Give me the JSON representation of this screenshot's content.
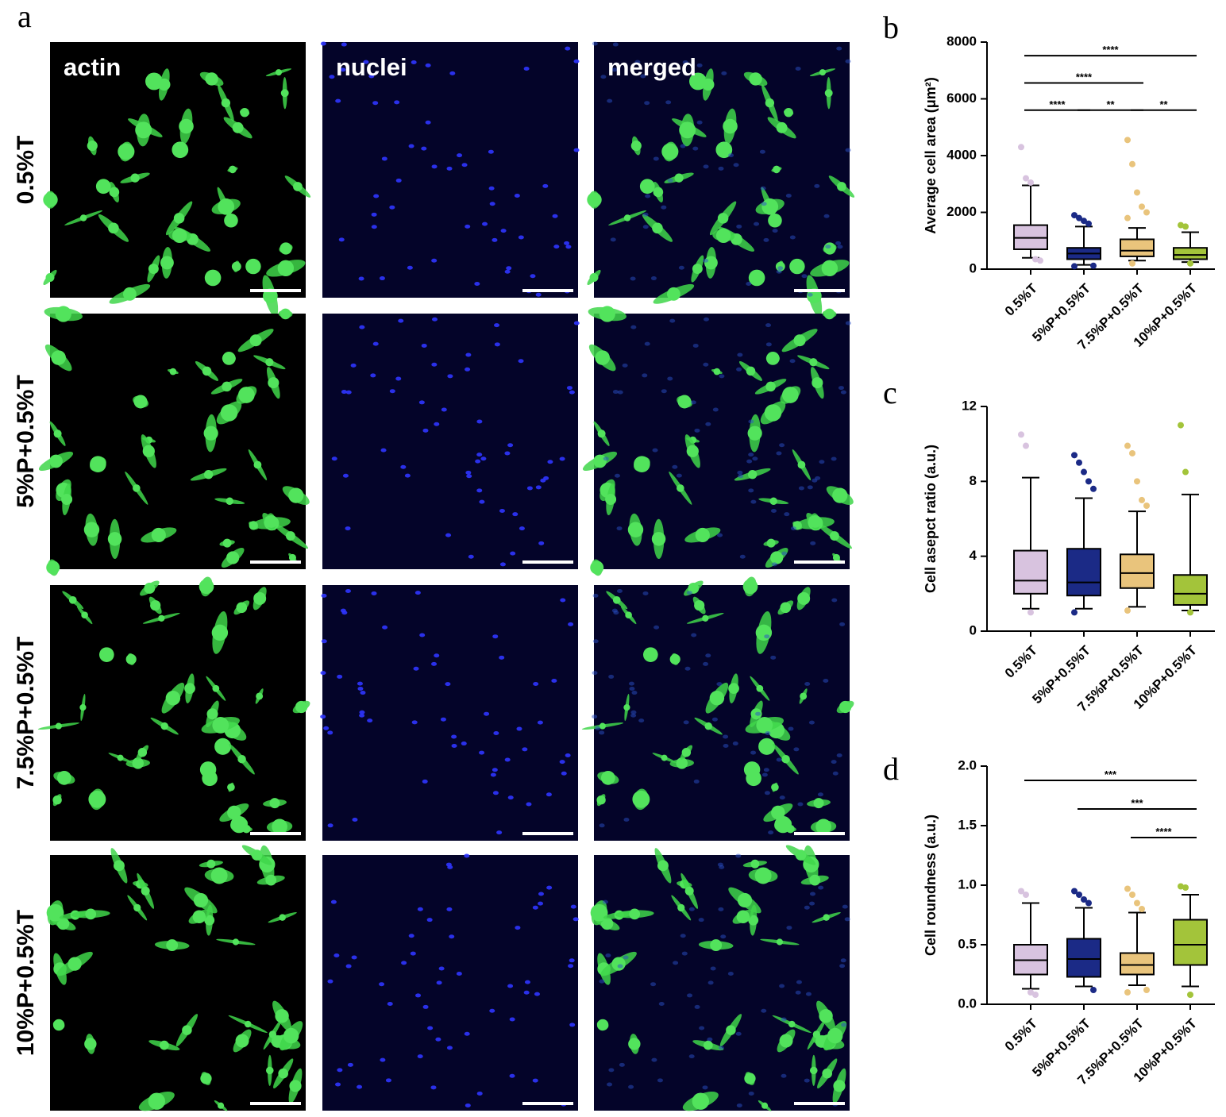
{
  "figure": {
    "panel_a": {
      "label": "a",
      "columns": [
        "actin",
        "nuclei",
        "merged"
      ],
      "rows": [
        "0.5%T",
        "5%P+0.5%T",
        "7.5%P+0.5%T",
        "10%P+0.5%T"
      ]
    }
  },
  "chart_data": [
    {
      "type": "box",
      "panel_label": "b",
      "ylabel": "Average cell area (μm²)",
      "categories": [
        "0.5%T",
        "5%P+0.5%T",
        "7.5%P+0.5%T",
        "10%P+0.5%T"
      ],
      "colors": [
        "#d8c3df",
        "#1b2a86",
        "#e9c47c",
        "#a3c43a"
      ],
      "ylim": [
        0,
        8000
      ],
      "yticks": [
        0,
        2000,
        4000,
        6000,
        8000
      ],
      "boxes": [
        {
          "whisker_low": 400,
          "q1": 700,
          "median": 1100,
          "q3": 1550,
          "whisker_high": 2950,
          "outliers": [
            4300,
            3200,
            3050,
            350,
            300
          ]
        },
        {
          "whisker_low": 150,
          "q1": 350,
          "median": 550,
          "q3": 750,
          "whisker_high": 1500,
          "outliers": [
            1900,
            1800,
            1700,
            1600,
            120,
            100
          ]
        },
        {
          "whisker_low": 300,
          "q1": 450,
          "median": 650,
          "q3": 1050,
          "whisker_high": 1450,
          "outliers": [
            4550,
            3700,
            2700,
            2200,
            2000,
            1800,
            200
          ]
        },
        {
          "whisker_low": 250,
          "q1": 350,
          "median": 500,
          "q3": 750,
          "whisker_high": 1300,
          "outliers": [
            1550,
            1500,
            200
          ]
        }
      ],
      "significance": [
        {
          "label": "****",
          "span": [
            "0.5%T",
            "10%P+0.5%T"
          ]
        },
        {
          "label": "****",
          "span": [
            "0.5%T",
            "7.5%P+0.5%T"
          ]
        },
        {
          "label": "****",
          "span": [
            "0.5%T",
            "5%P+0.5%T"
          ]
        },
        {
          "label": "**",
          "span": [
            "5%P+0.5%T",
            "7.5%P+0.5%T"
          ]
        },
        {
          "label": "**",
          "span": [
            "7.5%P+0.5%T",
            "10%P+0.5%T"
          ]
        }
      ]
    },
    {
      "type": "box",
      "panel_label": "c",
      "ylabel": "Cell asepct ratio (a.u.)",
      "categories": [
        "0.5%T",
        "5%P+0.5%T",
        "7.5%P+0.5%T",
        "10%P+0.5%T"
      ],
      "colors": [
        "#d8c3df",
        "#1b2a86",
        "#e9c47c",
        "#a3c43a"
      ],
      "ylim": [
        0,
        12
      ],
      "yticks": [
        0,
        4,
        8,
        12
      ],
      "boxes": [
        {
          "whisker_low": 1.2,
          "q1": 2.0,
          "median": 2.7,
          "q3": 4.3,
          "whisker_high": 8.2,
          "outliers": [
            10.5,
            9.9,
            1.0
          ]
        },
        {
          "whisker_low": 1.2,
          "q1": 1.9,
          "median": 2.6,
          "q3": 4.4,
          "whisker_high": 7.1,
          "outliers": [
            9.4,
            9.0,
            8.5,
            8.0,
            7.6,
            1.0
          ]
        },
        {
          "whisker_low": 1.3,
          "q1": 2.3,
          "median": 3.1,
          "q3": 4.1,
          "whisker_high": 6.4,
          "outliers": [
            9.9,
            9.5,
            8.0,
            7.0,
            6.7,
            1.1
          ]
        },
        {
          "whisker_low": 1.1,
          "q1": 1.4,
          "median": 2.0,
          "q3": 3.0,
          "whisker_high": 7.3,
          "outliers": [
            11.0,
            8.5,
            1.0
          ]
        }
      ],
      "significance": []
    },
    {
      "type": "box",
      "panel_label": "d",
      "ylabel": "Cell roundness (a.u.)",
      "categories": [
        "0.5%T",
        "5%P+0.5%T",
        "7.5%P+0.5%T",
        "10%P+0.5%T"
      ],
      "colors": [
        "#d8c3df",
        "#1b2a86",
        "#e9c47c",
        "#a3c43a"
      ],
      "ylim": [
        0,
        2
      ],
      "yticks": [
        {
          "value": 0,
          "label": "0.0"
        },
        0.5,
        {
          "value": 1,
          "label": "1.0"
        },
        1.5,
        {
          "value": 2,
          "label": "2.0"
        }
      ],
      "boxes": [
        {
          "whisker_low": 0.13,
          "q1": 0.25,
          "median": 0.37,
          "q3": 0.5,
          "whisker_high": 0.85,
          "outliers": [
            0.95,
            0.92,
            0.1,
            0.08
          ]
        },
        {
          "whisker_low": 0.15,
          "q1": 0.23,
          "median": 0.38,
          "q3": 0.55,
          "whisker_high": 0.81,
          "outliers": [
            0.95,
            0.92,
            0.88,
            0.85,
            0.12
          ]
        },
        {
          "whisker_low": 0.16,
          "q1": 0.25,
          "median": 0.33,
          "q3": 0.43,
          "whisker_high": 0.77,
          "outliers": [
            0.97,
            0.92,
            0.85,
            0.8,
            0.12,
            0.1
          ]
        },
        {
          "whisker_low": 0.15,
          "q1": 0.33,
          "median": 0.5,
          "q3": 0.71,
          "whisker_high": 0.92,
          "outliers": [
            0.99,
            0.98,
            0.08
          ]
        }
      ],
      "significance": [
        {
          "label": "***",
          "span": [
            "0.5%T",
            "10%P+0.5%T"
          ]
        },
        {
          "label": "***",
          "span": [
            "5%P+0.5%T",
            "10%P+0.5%T"
          ]
        },
        {
          "label": "****",
          "span": [
            "7.5%P+0.5%T",
            "10%P+0.5%T"
          ]
        }
      ]
    }
  ]
}
